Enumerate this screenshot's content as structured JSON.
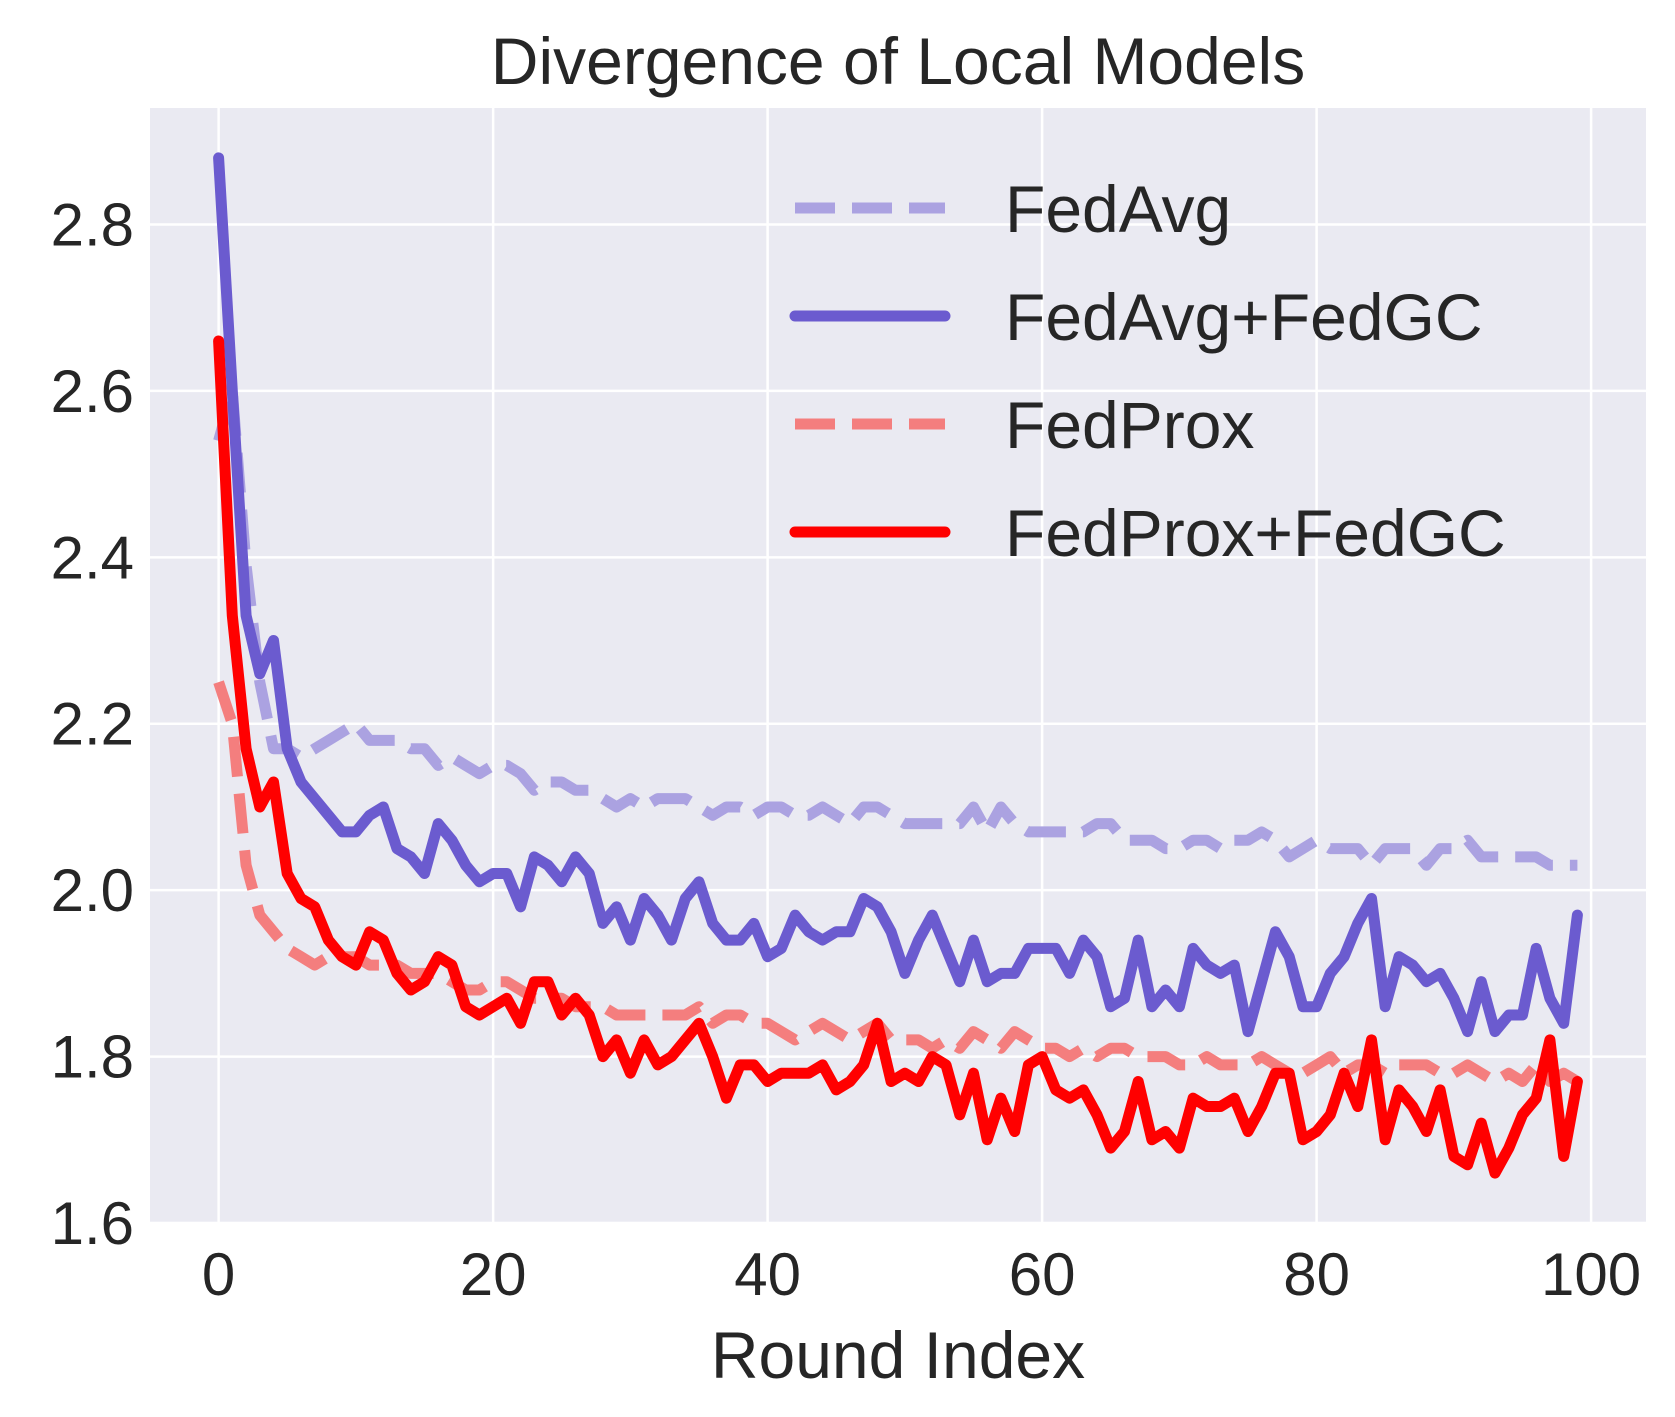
{
  "chart_data": {
    "type": "line",
    "title": "Divergence of Local Models",
    "xlabel": "Round Index",
    "ylabel": "",
    "xlim": [
      -5,
      104
    ],
    "ylim": [
      1.6,
      2.94
    ],
    "xticks": [
      0,
      20,
      40,
      60,
      80,
      100
    ],
    "xtick_labels": [
      "0",
      "20",
      "40",
      "60",
      "80",
      "100"
    ],
    "yticks": [
      1.6,
      1.8,
      2.0,
      2.2,
      2.4,
      2.6,
      2.8
    ],
    "ytick_labels": [
      "1.6",
      "1.8",
      "2.0",
      "2.2",
      "2.4",
      "2.6",
      "2.8"
    ],
    "grid": true,
    "legend_position": "top-right",
    "x_start": 0,
    "series": [
      {
        "name": "FedAvg",
        "color": "#aba2e1",
        "style": "dashed",
        "values": [
          2.54,
          2.6,
          2.39,
          2.25,
          2.17,
          2.17,
          2.16,
          2.17,
          2.18,
          2.19,
          2.2,
          2.18,
          2.18,
          2.18,
          2.17,
          2.17,
          2.15,
          2.16,
          2.15,
          2.14,
          2.15,
          2.15,
          2.14,
          2.12,
          2.13,
          2.13,
          2.12,
          2.12,
          2.11,
          2.1,
          2.11,
          2.1,
          2.11,
          2.11,
          2.11,
          2.1,
          2.09,
          2.1,
          2.1,
          2.09,
          2.1,
          2.1,
          2.09,
          2.09,
          2.1,
          2.09,
          2.08,
          2.1,
          2.1,
          2.09,
          2.08,
          2.08,
          2.08,
          2.08,
          2.08,
          2.1,
          2.07,
          2.1,
          2.08,
          2.07,
          2.07,
          2.07,
          2.07,
          2.07,
          2.08,
          2.08,
          2.06,
          2.06,
          2.06,
          2.05,
          2.05,
          2.06,
          2.06,
          2.05,
          2.06,
          2.06,
          2.07,
          2.06,
          2.04,
          2.05,
          2.06,
          2.05,
          2.05,
          2.05,
          2.03,
          2.05,
          2.05,
          2.05,
          2.03,
          2.05,
          2.05,
          2.06,
          2.04,
          2.04,
          2.04,
          2.04,
          2.04,
          2.03,
          2.03,
          2.03
        ]
      },
      {
        "name": "FedAvg+FedGC",
        "color": "#6b5bcf",
        "style": "solid",
        "values": [
          2.88,
          2.6,
          2.33,
          2.26,
          2.3,
          2.17,
          2.13,
          2.11,
          2.09,
          2.07,
          2.07,
          2.09,
          2.1,
          2.05,
          2.04,
          2.02,
          2.08,
          2.06,
          2.03,
          2.01,
          2.02,
          2.02,
          1.98,
          2.04,
          2.03,
          2.01,
          2.04,
          2.02,
          1.96,
          1.98,
          1.94,
          1.99,
          1.97,
          1.94,
          1.99,
          2.01,
          1.96,
          1.94,
          1.94,
          1.96,
          1.92,
          1.93,
          1.97,
          1.95,
          1.94,
          1.95,
          1.95,
          1.99,
          1.98,
          1.95,
          1.9,
          1.94,
          1.97,
          1.93,
          1.89,
          1.94,
          1.89,
          1.9,
          1.9,
          1.93,
          1.93,
          1.93,
          1.9,
          1.94,
          1.92,
          1.86,
          1.87,
          1.94,
          1.86,
          1.88,
          1.86,
          1.93,
          1.91,
          1.9,
          1.91,
          1.83,
          1.89,
          1.95,
          1.92,
          1.86,
          1.86,
          1.9,
          1.92,
          1.96,
          1.99,
          1.86,
          1.92,
          1.91,
          1.89,
          1.9,
          1.87,
          1.83,
          1.89,
          1.83,
          1.85,
          1.85,
          1.93,
          1.87,
          1.84,
          1.97
        ]
      },
      {
        "name": "FedProx",
        "color": "#f47e7e",
        "style": "dashed",
        "values": [
          2.25,
          2.2,
          2.03,
          1.97,
          1.95,
          1.93,
          1.92,
          1.91,
          1.92,
          1.92,
          1.92,
          1.91,
          1.91,
          1.91,
          1.9,
          1.9,
          1.9,
          1.89,
          1.88,
          1.88,
          1.89,
          1.89,
          1.88,
          1.87,
          1.87,
          1.87,
          1.86,
          1.86,
          1.86,
          1.85,
          1.85,
          1.85,
          1.85,
          1.85,
          1.85,
          1.86,
          1.84,
          1.85,
          1.85,
          1.84,
          1.84,
          1.83,
          1.82,
          1.83,
          1.84,
          1.83,
          1.82,
          1.83,
          1.84,
          1.82,
          1.82,
          1.82,
          1.81,
          1.82,
          1.81,
          1.83,
          1.82,
          1.81,
          1.83,
          1.82,
          1.81,
          1.81,
          1.8,
          1.81,
          1.8,
          1.81,
          1.81,
          1.8,
          1.8,
          1.8,
          1.79,
          1.79,
          1.8,
          1.79,
          1.79,
          1.79,
          1.8,
          1.79,
          1.78,
          1.78,
          1.79,
          1.8,
          1.78,
          1.79,
          1.79,
          1.78,
          1.79,
          1.79,
          1.79,
          1.78,
          1.78,
          1.79,
          1.78,
          1.77,
          1.78,
          1.77,
          1.79,
          1.77,
          1.78,
          1.77
        ]
      },
      {
        "name": "FedProx+FedGC",
        "color": "#ff0000",
        "style": "solid",
        "values": [
          2.66,
          2.33,
          2.17,
          2.1,
          2.13,
          2.02,
          1.99,
          1.98,
          1.94,
          1.92,
          1.91,
          1.95,
          1.94,
          1.9,
          1.88,
          1.89,
          1.92,
          1.91,
          1.86,
          1.85,
          1.86,
          1.87,
          1.84,
          1.89,
          1.89,
          1.85,
          1.87,
          1.85,
          1.8,
          1.82,
          1.78,
          1.82,
          1.79,
          1.8,
          1.82,
          1.84,
          1.8,
          1.75,
          1.79,
          1.79,
          1.77,
          1.78,
          1.78,
          1.78,
          1.79,
          1.76,
          1.77,
          1.79,
          1.84,
          1.77,
          1.78,
          1.77,
          1.8,
          1.79,
          1.73,
          1.78,
          1.7,
          1.75,
          1.71,
          1.79,
          1.8,
          1.76,
          1.75,
          1.76,
          1.73,
          1.69,
          1.71,
          1.77,
          1.7,
          1.71,
          1.69,
          1.75,
          1.74,
          1.74,
          1.75,
          1.71,
          1.74,
          1.78,
          1.78,
          1.7,
          1.71,
          1.73,
          1.78,
          1.74,
          1.82,
          1.7,
          1.76,
          1.74,
          1.71,
          1.76,
          1.68,
          1.67,
          1.72,
          1.66,
          1.69,
          1.73,
          1.75,
          1.82,
          1.68,
          1.77
        ]
      }
    ]
  }
}
